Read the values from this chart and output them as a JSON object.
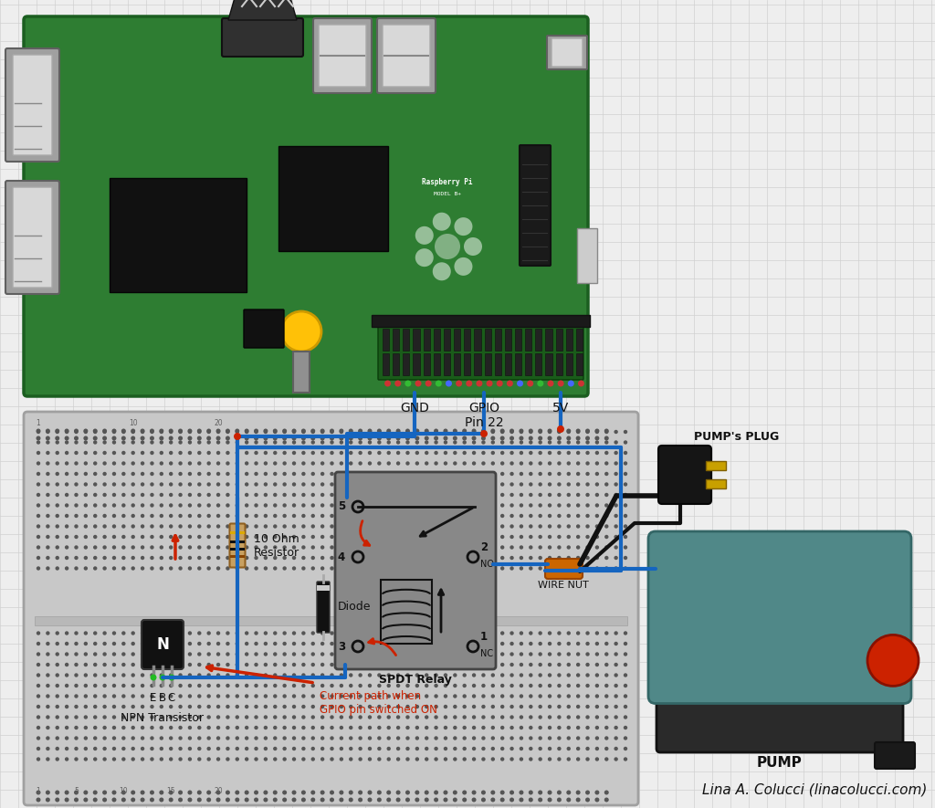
{
  "bg_color": "#eeeeee",
  "grid_color": "#d0d0d0",
  "wire_blue": "#1565c0",
  "wire_red": "#cc2200",
  "rpi_green": "#2e7d32",
  "rpi_dark": "#1b5e20",
  "breadboard_color": "#c8c8c8",
  "relay_color": "#909090",
  "pump_teal": "#5a9090",
  "pump_dark": "#303030",
  "labels": {
    "gnd": "GND",
    "gpio22": "GPIO\nPin 22",
    "v5": "5V",
    "resistor": "10 Ohm\nResistor",
    "diode": "Diode",
    "transistor": "NPN Transistor",
    "relay": "SPDT Relay",
    "wire_nut": "WIRE NUT",
    "pump_plug": "PUMP's PLUG",
    "pump": "PUMP",
    "current_path": "Current path when\nGPIO pin switched ON",
    "credit": "Lina A. Colucci (linacolucci.com)"
  }
}
